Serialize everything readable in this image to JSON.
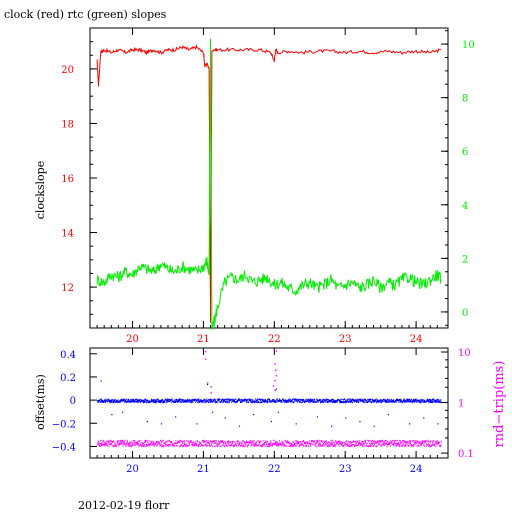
{
  "title": "clock (red) rtc (green) slopes",
  "footer": "2012-02-19 florr",
  "colors": {
    "red": "#ff0000",
    "green": "#00ee00",
    "blue": "#0000ff",
    "magenta": "#ff00ff",
    "axis": "#000000"
  },
  "chart_data": [
    {
      "type": "line",
      "title": "clock (red) rtc (green) slopes",
      "ylabel": "clockslope",
      "xlim": [
        19.4,
        24.45
      ],
      "xticks": [
        20,
        21,
        22,
        23,
        24
      ],
      "ylim": [
        10.5,
        21.5
      ],
      "yticks_left": [
        12,
        14,
        16,
        18,
        20
      ],
      "y2lim": [
        -0.6,
        10.6
      ],
      "yticks_right": [
        0,
        2,
        4,
        6,
        8,
        10
      ],
      "series": [
        {
          "name": "clock",
          "axis": "left",
          "color": "#ff0000",
          "x": [
            19.5,
            19.52,
            19.55,
            19.6,
            19.7,
            19.8,
            19.9,
            20.0,
            20.1,
            20.2,
            20.3,
            20.4,
            20.5,
            20.6,
            20.7,
            20.8,
            20.9,
            21.0,
            21.02,
            21.05,
            21.08,
            21.1,
            21.12,
            21.2,
            21.4,
            21.6,
            21.8,
            21.95,
            22.0,
            22.02,
            22.05,
            22.2,
            22.4,
            22.6,
            22.8,
            23.0,
            23.2,
            23.4,
            23.6,
            23.8,
            24.0,
            24.2,
            24.35
          ],
          "values": [
            20.3,
            19.4,
            20.6,
            20.7,
            20.6,
            20.7,
            20.6,
            20.7,
            20.7,
            20.6,
            20.7,
            20.6,
            20.7,
            20.7,
            20.8,
            20.7,
            20.8,
            20.6,
            20.1,
            20.2,
            20.0,
            10.7,
            20.7,
            20.7,
            20.7,
            20.7,
            20.7,
            20.6,
            20.3,
            20.7,
            20.6,
            20.65,
            20.6,
            20.65,
            20.65,
            20.6,
            20.65,
            20.6,
            20.65,
            20.6,
            20.65,
            20.6,
            20.7
          ]
        },
        {
          "name": "rtc",
          "axis": "right",
          "color": "#00ee00",
          "x": [
            19.5,
            19.6,
            19.7,
            19.8,
            19.9,
            20.0,
            20.1,
            20.2,
            20.3,
            20.4,
            20.5,
            20.6,
            20.7,
            20.8,
            20.9,
            21.0,
            21.05,
            21.08,
            21.1,
            21.12,
            21.15,
            21.2,
            21.3,
            21.4,
            21.5,
            21.6,
            21.7,
            21.8,
            21.9,
            22.0,
            22.1,
            22.2,
            22.3,
            22.4,
            22.5,
            22.6,
            22.7,
            22.8,
            22.9,
            23.0,
            23.1,
            23.2,
            23.3,
            23.4,
            23.5,
            23.6,
            23.7,
            23.8,
            23.9,
            24.0,
            24.1,
            24.2,
            24.3,
            24.35
          ],
          "values": [
            1.2,
            1.1,
            1.4,
            1.3,
            1.5,
            1.4,
            1.7,
            1.6,
            1.5,
            1.8,
            1.6,
            1.5,
            1.7,
            1.6,
            1.5,
            1.7,
            1.9,
            1.4,
            10.2,
            -0.6,
            -0.4,
            0.2,
            1.1,
            1.3,
            1.2,
            1.4,
            1.1,
            1.2,
            1.3,
            1.0,
            1.1,
            0.9,
            0.8,
            1.0,
            1.1,
            0.9,
            1.0,
            1.2,
            0.9,
            1.0,
            1.1,
            0.9,
            1.0,
            1.2,
            0.9,
            1.1,
            1.0,
            1.2,
            1.3,
            1.1,
            1.0,
            1.2,
            1.4,
            1.2
          ]
        }
      ]
    },
    {
      "type": "scatter",
      "ylabel": "offset(ms)",
      "y2label": "rnd−trip(ms)",
      "xlim": [
        19.4,
        24.45
      ],
      "xticks": [
        20,
        21,
        22,
        23,
        24
      ],
      "ylim": [
        -0.5,
        0.45
      ],
      "yticks_left": [
        -0.4,
        -0.2,
        0,
        0.2,
        0.4
      ],
      "y2lim_log": [
        0.08,
        12
      ],
      "yticks_right": [
        0.1,
        1,
        10
      ],
      "series": [
        {
          "name": "offset",
          "axis": "left",
          "color": "#0000ff",
          "band_center": 0.0,
          "band_halfwidth": 0.015,
          "outliers": [
            [
              19.55,
              0.17
            ],
            [
              19.7,
              -0.12
            ],
            [
              19.85,
              -0.1
            ],
            [
              20.2,
              -0.18
            ],
            [
              20.4,
              -0.2
            ],
            [
              20.6,
              -0.14
            ],
            [
              20.9,
              -0.2
            ],
            [
              21.05,
              0.14
            ],
            [
              21.1,
              0.12
            ],
            [
              21.12,
              -0.1
            ],
            [
              21.3,
              -0.15
            ],
            [
              21.5,
              -0.22
            ],
            [
              21.7,
              -0.12
            ],
            [
              21.95,
              -0.18
            ],
            [
              22.02,
              0.1
            ],
            [
              22.05,
              -0.1
            ],
            [
              22.3,
              -0.2
            ],
            [
              22.6,
              -0.14
            ],
            [
              22.8,
              -0.22
            ],
            [
              23.0,
              -0.15
            ],
            [
              23.2,
              -0.18
            ],
            [
              23.4,
              -0.22
            ],
            [
              23.6,
              -0.12
            ],
            [
              23.9,
              -0.2
            ],
            [
              24.1,
              -0.15
            ],
            [
              24.3,
              -0.2
            ]
          ]
        },
        {
          "name": "round-trip",
          "axis": "right",
          "color": "#ff00ff",
          "band_center": 0.16,
          "band_halfwidth_ratio": 1.15,
          "outliers": [
            [
              21.02,
              10.5
            ],
            [
              21.02,
              7.5
            ],
            [
              21.05,
              2.5
            ],
            [
              21.1,
              1.6
            ],
            [
              22.02,
              10.8
            ],
            [
              22.0,
              6.0
            ],
            [
              22.01,
              4.5
            ],
            [
              22.02,
              3.5
            ],
            [
              22.0,
              2.8
            ],
            [
              21.98,
              2.2
            ],
            [
              22.0,
              1.8
            ]
          ]
        }
      ]
    }
  ]
}
